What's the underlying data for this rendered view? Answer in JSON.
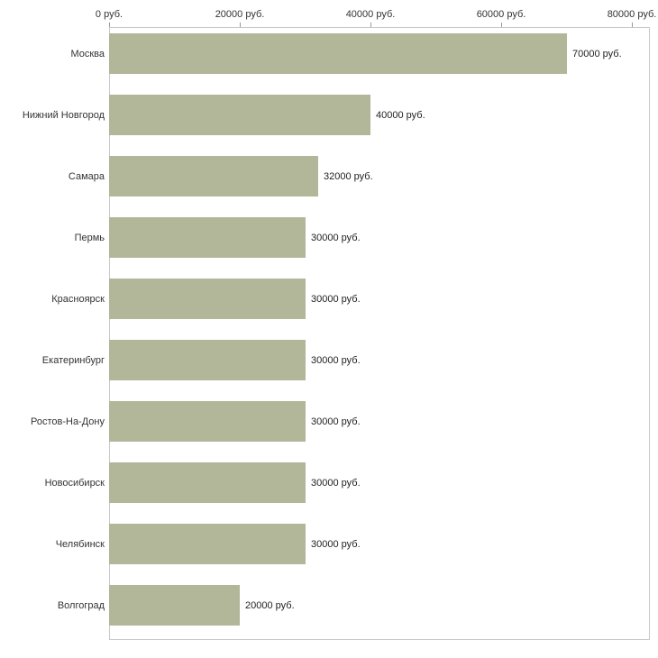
{
  "chart_data": {
    "type": "bar",
    "orientation": "horizontal",
    "title": "",
    "xlabel": "",
    "ylabel": "",
    "categories": [
      "Москва",
      "Нижний Новгород",
      "Самара",
      "Пермь",
      "Красноярск",
      "Екатеринбург",
      "Ростов-На-Дону",
      "Новосибирск",
      "Челябинск",
      "Волгоград"
    ],
    "values": [
      70000,
      40000,
      32000,
      30000,
      30000,
      30000,
      30000,
      30000,
      30000,
      20000
    ],
    "value_labels": [
      "70000 руб.",
      "40000 руб.",
      "32000 руб.",
      "30000 руб.",
      "30000 руб.",
      "30000 руб.",
      "30000 руб.",
      "30000 руб.",
      "30000 руб.",
      "20000 руб."
    ],
    "x_ticks": [
      0,
      20000,
      40000,
      60000,
      80000
    ],
    "x_tick_labels": [
      "0 руб.",
      "20000 руб.",
      "40000 руб.",
      "60000 руб.",
      "80000 руб."
    ],
    "xlim": [
      0,
      80000
    ],
    "bar_color": "#b2b79a",
    "axis_color": "#c9c9c9",
    "grid": false,
    "legend": false
  }
}
